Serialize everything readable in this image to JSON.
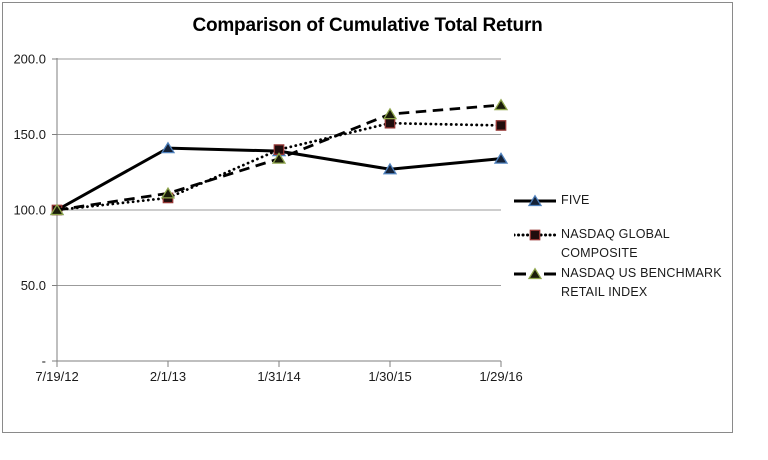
{
  "chart_data": {
    "type": "line",
    "title": "Comparison of Cumulative Total Return",
    "x_labels": [
      "7/19/12",
      "2/1/13",
      "1/31/14",
      "1/30/15",
      "1/29/16"
    ],
    "y_axis": {
      "range": [
        0,
        200
      ],
      "ticks": [
        {
          "label": "200.0",
          "value": 200
        },
        {
          "label": "150.0",
          "value": 150
        },
        {
          "label": "100.0",
          "value": 100
        },
        {
          "label": "50.0",
          "value": 50
        },
        {
          "label": "-",
          "value": 0
        }
      ]
    },
    "grid": true,
    "legend_position": "right-middle",
    "series": [
      {
        "name": "FIVE",
        "values": [
          100.0,
          141.0,
          139.0,
          127.0,
          134.0
        ],
        "line_style": "solid",
        "marker": "triangle",
        "line_color": "#000000",
        "marker_fill": "#152238",
        "marker_stroke": "#4f81bd"
      },
      {
        "name": "NASDAQ GLOBAL COMPOSITE",
        "values": [
          100.0,
          108.0,
          140.0,
          157.5,
          156.0
        ],
        "line_style": "dotted",
        "marker": "square",
        "line_color": "#000000",
        "marker_fill": "#200d0d",
        "marker_stroke": "#943634"
      },
      {
        "name": "NASDAQ US BENCHMARK RETAIL INDEX",
        "values": [
          100.0,
          111.0,
          134.0,
          163.5,
          169.5
        ],
        "line_style": "dashed",
        "marker": "triangle",
        "line_color": "#000000",
        "marker_fill": "#1a1c0a",
        "marker_stroke": "#8fa64d"
      }
    ]
  },
  "colors": {
    "axis": "#7f7f7f",
    "grid": "#9b9b9b",
    "tick_text": "#1a1a1a",
    "frame_border": "#8a8a8a",
    "background": "#ffffff"
  }
}
